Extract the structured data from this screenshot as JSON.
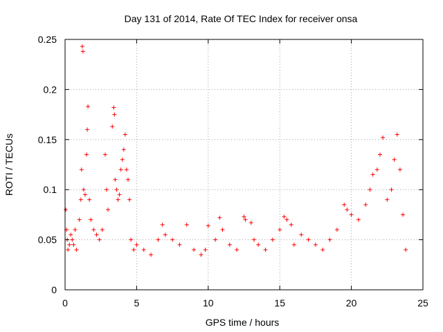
{
  "chart_data": {
    "type": "scatter",
    "title": "Day 131 of 2014, Rate Of TEC Index for receiver onsa",
    "xlabel": "GPS time / hours",
    "ylabel": "ROTI / TECUs",
    "xlim": [
      0,
      25
    ],
    "ylim": [
      0,
      0.25
    ],
    "xticks": [
      "0",
      "5",
      "10",
      "15",
      "20",
      "25"
    ],
    "yticks": [
      "0",
      "0.05",
      "0.1",
      "0.15",
      "0.2",
      "0.25"
    ],
    "grid": true,
    "legend": "none",
    "marker": "plus",
    "color": "#ff0000",
    "series": [
      {
        "x": [
          0.05,
          0.1,
          0.15,
          0.2,
          0.3,
          0.4,
          0.5,
          0.6,
          0.7,
          0.8,
          1.0,
          1.1,
          1.15,
          1.2,
          1.25,
          1.3,
          1.4,
          1.5,
          1.55,
          1.6,
          1.7,
          1.8,
          2.0,
          2.2,
          2.4,
          2.6,
          2.8,
          2.9,
          3.0,
          3.3,
          3.4,
          3.45,
          3.5,
          3.6,
          3.7,
          3.8,
          3.9,
          4.0,
          4.1,
          4.2,
          4.3,
          4.4,
          4.5,
          4.6,
          4.8,
          5.0,
          5.5,
          6.0,
          6.5,
          6.8,
          7.0,
          7.5,
          8.0,
          8.5,
          9.0,
          9.5,
          9.8,
          10.0,
          10.5,
          10.8,
          11.0,
          11.5,
          12.0,
          12.5,
          12.6,
          13.0,
          13.2,
          13.5,
          14.0,
          14.5,
          15.0,
          15.3,
          15.5,
          15.8,
          16.0,
          16.5,
          17.0,
          17.5,
          18.0,
          18.5,
          19.0,
          19.5,
          19.7,
          20.0,
          20.5,
          21.0,
          21.3,
          21.5,
          21.8,
          22.0,
          22.2,
          22.5,
          22.8,
          23.0,
          23.2,
          23.4,
          23.6,
          23.8
        ],
        "y": [
          0.08,
          0.06,
          0.05,
          0.04,
          0.045,
          0.055,
          0.05,
          0.045,
          0.06,
          0.04,
          0.07,
          0.09,
          0.12,
          0.243,
          0.238,
          0.1,
          0.095,
          0.135,
          0.16,
          0.183,
          0.09,
          0.07,
          0.06,
          0.055,
          0.05,
          0.06,
          0.135,
          0.1,
          0.08,
          0.163,
          0.182,
          0.175,
          0.11,
          0.1,
          0.09,
          0.095,
          0.12,
          0.13,
          0.14,
          0.155,
          0.12,
          0.11,
          0.09,
          0.05,
          0.04,
          0.045,
          0.04,
          0.035,
          0.05,
          0.065,
          0.055,
          0.05,
          0.045,
          0.065,
          0.04,
          0.035,
          0.04,
          0.064,
          0.05,
          0.072,
          0.06,
          0.045,
          0.04,
          0.073,
          0.07,
          0.067,
          0.05,
          0.045,
          0.04,
          0.05,
          0.06,
          0.073,
          0.07,
          0.065,
          0.045,
          0.055,
          0.05,
          0.045,
          0.04,
          0.05,
          0.06,
          0.085,
          0.08,
          0.075,
          0.07,
          0.085,
          0.1,
          0.115,
          0.12,
          0.135,
          0.152,
          0.09,
          0.1,
          0.13,
          0.155,
          0.12,
          0.075,
          0.04
        ]
      }
    ]
  }
}
